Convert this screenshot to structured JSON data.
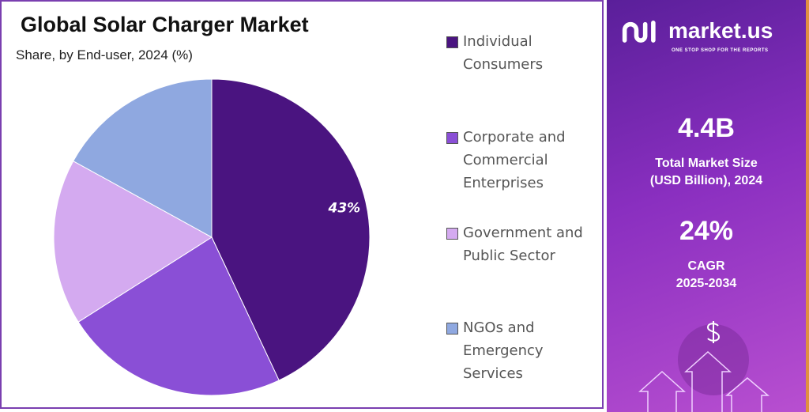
{
  "chart_data": {
    "type": "pie",
    "title": "Global Solar Charger Market",
    "subtitle": "Share, by End-user, 2024 (%)",
    "categories": [
      "Individual Consumers",
      "Corporate and Commercial Enterprises",
      "Government and Public Sector",
      "NGOs and Emergency Services"
    ],
    "legend_lines": [
      [
        "Individual",
        "Consumers"
      ],
      [
        "Corporate and",
        "Commercial",
        "Enterprises"
      ],
      [
        "Government and",
        "Public Sector"
      ],
      [
        "NGOs and",
        "Emergency",
        "Services"
      ]
    ],
    "values": [
      43,
      23,
      17,
      17
    ],
    "data_labels": [
      "43%",
      "",
      "",
      ""
    ],
    "colors": [
      "#4a1480",
      "#8a4fd6",
      "#d4aaf0",
      "#8fa8e0"
    ],
    "legend_position": "right"
  },
  "panel": {
    "logo": "market.us",
    "tagline": "ONE STOP SHOP FOR THE REPORTS",
    "market_size": "4.4B",
    "market_size_label": [
      "Total Market Size",
      "(USD Billion), 2024"
    ],
    "cagr": "24%",
    "cagr_label": [
      "CAGR",
      "2025-2034"
    ],
    "icon": "dollar-growth-arrows-icon"
  }
}
